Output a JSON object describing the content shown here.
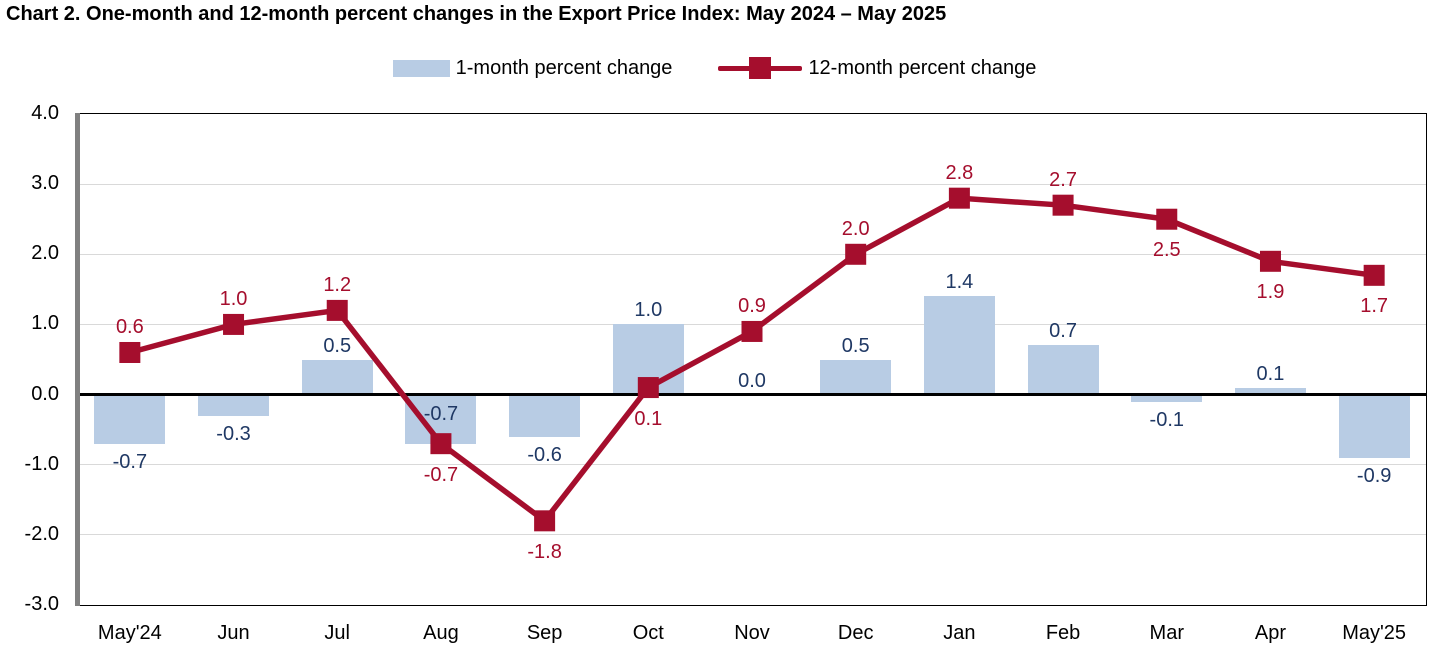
{
  "page": {
    "title": "Chart 2. One-month and 12-month percent changes in the Export Price Index: May 2024 – May 2025"
  },
  "legend": {
    "items": [
      {
        "label": "1-month percent change",
        "swatch": "bar",
        "color": "#b8cce4"
      },
      {
        "label": "12-month percent change",
        "swatch": "line-marker",
        "color": "#a50e2d"
      }
    ]
  },
  "chart_data": {
    "type": "bar+line combo",
    "title": "Chart 2. One-month and 12-month percent changes in the Export Price Index: May 2024 – May 2025",
    "categories": [
      "May'24",
      "Jun",
      "Jul",
      "Aug",
      "Sep",
      "Oct",
      "Nov",
      "Dec",
      "Jan",
      "Feb",
      "Mar",
      "Apr",
      "May'25"
    ],
    "series": [
      {
        "name": "1-month percent change",
        "type": "bar",
        "color": "#b8cce4",
        "label_color": "#1f3864",
        "values": [
          -0.7,
          -0.3,
          0.5,
          -0.7,
          -0.6,
          1.0,
          0.0,
          0.5,
          1.4,
          0.7,
          -0.1,
          0.1,
          -0.9
        ],
        "label_side": [
          "below",
          "below",
          "above",
          "inside",
          "below",
          "above",
          "above",
          "above",
          "above",
          "above",
          "below",
          "above",
          "below"
        ]
      },
      {
        "name": "12-month percent change",
        "type": "line",
        "marker": "square",
        "color": "#a50e2d",
        "label_color": "#a50e2d",
        "values": [
          0.6,
          1.0,
          1.2,
          -0.7,
          -1.8,
          0.1,
          0.9,
          2.0,
          2.8,
          2.7,
          2.5,
          1.9,
          1.7
        ],
        "label_side": [
          "above",
          "above",
          "above",
          "below",
          "below",
          "below",
          "above",
          "above",
          "above",
          "above",
          "below",
          "below",
          "below"
        ]
      }
    ],
    "ylim": [
      -3.0,
      4.0
    ],
    "yticks": [
      4.0,
      3.0,
      2.0,
      1.0,
      0.0,
      -1.0,
      -2.0,
      -3.0
    ],
    "ytick_labels": [
      "4.0",
      "3.0",
      "2.0",
      "1.0",
      "0.0",
      "-1.0",
      "-2.0",
      "-3.0"
    ],
    "grid": true,
    "zero_line": true,
    "legend_position": "top",
    "grid_color": "#d9d9d9",
    "zero_line_color": "#000000",
    "axis_color": "#808080",
    "plot_border_color": "#000000"
  }
}
